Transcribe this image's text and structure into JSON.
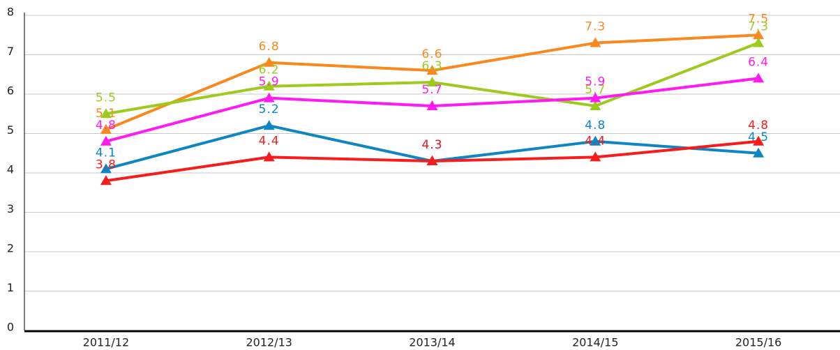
{
  "chart_data": {
    "type": "line",
    "categories": [
      "2011/12",
      "2012/13",
      "2013/14",
      "2014/15",
      "2015/16"
    ],
    "series": [
      {
        "color": "#f7891f",
        "values": [
          5.1,
          6.8,
          6.6,
          7.3,
          7.5
        ]
      },
      {
        "color": "#9dca1e",
        "values": [
          5.5,
          6.2,
          6.3,
          5.7,
          7.3
        ]
      },
      {
        "color": "#ff1bf0",
        "values": [
          4.8,
          5.9,
          5.7,
          5.9,
          6.4
        ]
      },
      {
        "color": "#0e86c2",
        "values": [
          4.1,
          5.2,
          4.3,
          4.8,
          4.5
        ]
      },
      {
        "color": "#f41c1c",
        "values": [
          3.8,
          4.4,
          4.3,
          4.4,
          4.8
        ]
      }
    ],
    "ylim": [
      0,
      8
    ],
    "yticks": [
      0,
      1,
      2,
      3,
      4,
      5,
      6,
      7,
      8
    ],
    "grid": true
  }
}
